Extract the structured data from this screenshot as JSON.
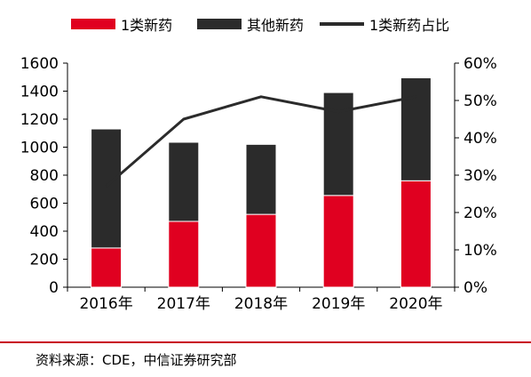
{
  "chart_data": {
    "type": "bar",
    "stacked": true,
    "categories": [
      "2016年",
      "2017年",
      "2018年",
      "2019年",
      "2020年"
    ],
    "series": [
      {
        "name": "1类新药",
        "kind": "bar",
        "axis": "left",
        "color": "#e00020",
        "values": [
          280,
          470,
          520,
          655,
          760
        ]
      },
      {
        "name": "其他新药",
        "kind": "bar",
        "axis": "left",
        "color": "#2b2b2b",
        "values": [
          850,
          565,
          500,
          735,
          735
        ]
      },
      {
        "name": "1类新药占比",
        "kind": "line",
        "axis": "right",
        "color": "#2b2b2b",
        "values": [
          0.27,
          0.45,
          0.51,
          0.47,
          0.51
        ]
      }
    ],
    "y_left": {
      "range": [
        0,
        1600
      ],
      "ticks": [
        "0",
        "200",
        "400",
        "600",
        "800",
        "1000",
        "1200",
        "1400",
        "1600"
      ]
    },
    "y_right": {
      "range": [
        0,
        0.6
      ],
      "ticks": [
        "0%",
        "10%",
        "20%",
        "30%",
        "40%",
        "50%",
        "60%"
      ]
    },
    "grid": false,
    "legend_position": "top"
  },
  "source": "资料来源：CDE，中信证券研究部",
  "footer_color": "#c8001e"
}
